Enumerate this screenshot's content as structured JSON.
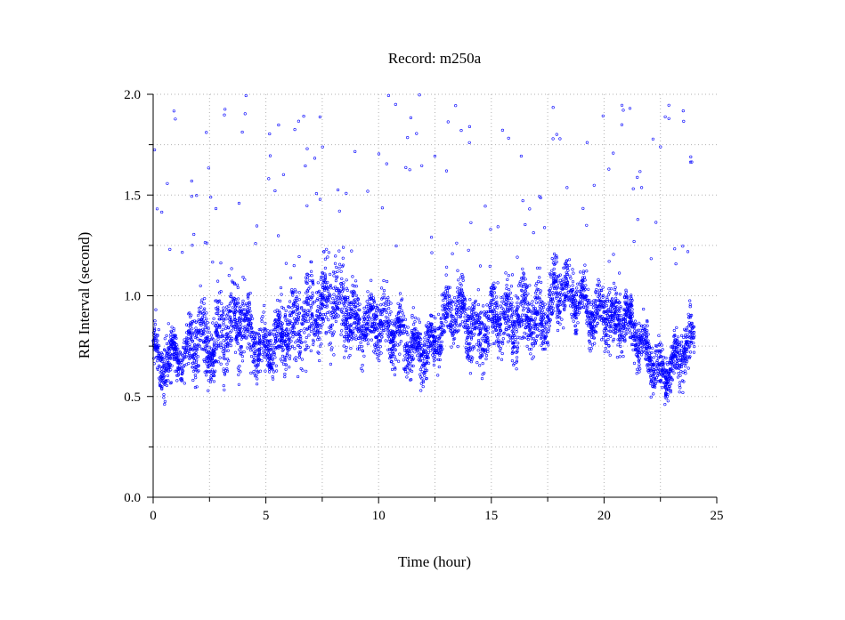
{
  "chart_data": {
    "type": "scatter",
    "title": "Record:  m250a",
    "xlabel": "Time (hour)",
    "ylabel": "RR Interval (second)",
    "xlim": [
      0,
      25
    ],
    "ylim": [
      0,
      2.0
    ],
    "x_ticks": [
      0,
      5,
      10,
      15,
      20,
      25
    ],
    "x_tick_labels": [
      "0",
      "5",
      "10",
      "15",
      "20",
      "25"
    ],
    "y_ticks": [
      0.0,
      0.5,
      1.0,
      1.5,
      2.0
    ],
    "y_tick_labels": [
      "0.0",
      "0.5",
      "1.0",
      "1.5",
      "2.0"
    ],
    "grid": true,
    "marker_color": "#0000ff",
    "series": [
      {
        "x": [
          0.1,
          0.3,
          0.5,
          0.8,
          1.0,
          1.3,
          1.6,
          2.0,
          2.3,
          2.6,
          3.0,
          3.4,
          3.8,
          4.2,
          4.6,
          5.0,
          5.5,
          6.0,
          6.5,
          7.0,
          7.5,
          8.0,
          8.5,
          9.0,
          9.5,
          10.0,
          10.5,
          11.0,
          11.5,
          12.0,
          12.5,
          13.0,
          13.5,
          14.0,
          14.5,
          15.0,
          15.5,
          16.0,
          16.5,
          17.0,
          17.5,
          18.0,
          18.5,
          19.0,
          19.5,
          20.0,
          20.5,
          21.0,
          21.5,
          22.0,
          22.5,
          23.0,
          23.5,
          24.0
        ],
        "y": [
          0.74,
          0.62,
          0.68,
          0.7,
          0.72,
          0.66,
          0.75,
          0.78,
          0.8,
          0.72,
          0.82,
          0.85,
          0.88,
          0.83,
          0.74,
          0.72,
          0.78,
          0.84,
          0.86,
          0.92,
          0.95,
          0.98,
          0.93,
          0.86,
          0.85,
          0.88,
          0.84,
          0.8,
          0.75,
          0.72,
          0.76,
          0.9,
          0.95,
          0.86,
          0.8,
          0.9,
          0.88,
          0.87,
          0.93,
          0.86,
          0.9,
          1.05,
          1.0,
          0.98,
          0.9,
          0.92,
          0.86,
          0.9,
          0.78,
          0.7,
          0.6,
          0.65,
          0.72,
          0.78
        ],
        "spread": [
          0.12,
          0.1,
          0.15,
          0.12,
          0.1,
          0.1,
          0.14,
          0.18,
          0.18,
          0.12,
          0.2,
          0.18,
          0.2,
          0.16,
          0.12,
          0.12,
          0.14,
          0.18,
          0.2,
          0.22,
          0.2,
          0.2,
          0.2,
          0.16,
          0.14,
          0.16,
          0.15,
          0.14,
          0.12,
          0.12,
          0.12,
          0.14,
          0.15,
          0.16,
          0.16,
          0.16,
          0.16,
          0.18,
          0.18,
          0.16,
          0.14,
          0.14,
          0.12,
          0.12,
          0.12,
          0.14,
          0.14,
          0.12,
          0.12,
          0.12,
          0.1,
          0.12,
          0.12,
          0.12
        ]
      }
    ]
  }
}
